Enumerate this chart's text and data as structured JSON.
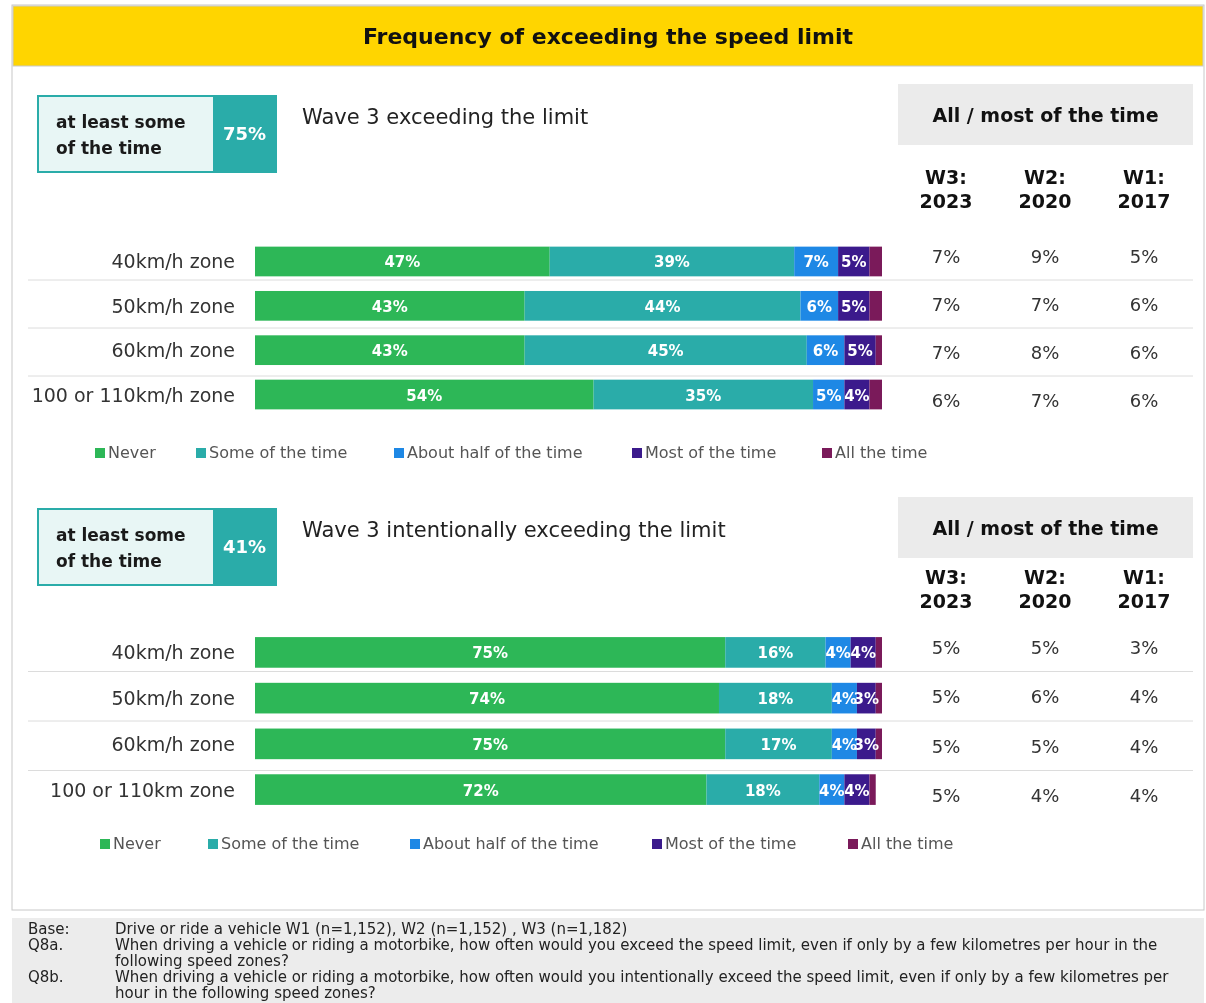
{
  "chart_data": [
    {
      "type": "other",
      "title": "Frequency of exceeding the speed limit"
    },
    {
      "type": "other",
      "title": "at least some of the time",
      "annotations": [
        "75%"
      ]
    },
    {
      "type": "bar",
      "orientation": "horizontal",
      "stacked": true,
      "title": "Wave 3 exceeding the limit",
      "categories": [
        "40km/h zone",
        "50km/h zone",
        "60km/h zone",
        "100 or 110km/h zone"
      ],
      "xlim": [
        0,
        100
      ],
      "tick_labels": false,
      "legend": "bottom",
      "series": [
        {
          "name": "Never",
          "color": "#2db757",
          "values": [
            47,
            43,
            43,
            54
          ],
          "value_labels": [
            "47%",
            "43%",
            "43%",
            "54%"
          ]
        },
        {
          "name": "Some of the time",
          "color": "#2aaca9",
          "values": [
            39,
            44,
            45,
            35
          ],
          "value_labels": [
            "39%",
            "44%",
            "45%",
            "35%"
          ]
        },
        {
          "name": "About half of the time",
          "color": "#1e88e5",
          "values": [
            7,
            6,
            6,
            5
          ],
          "value_labels": [
            "7%",
            "6%",
            "6%",
            "5%"
          ]
        },
        {
          "name": "Most of the time",
          "color": "#3b1a8c",
          "values": [
            5,
            5,
            5,
            4
          ],
          "value_labels": [
            "5%",
            "5%",
            "5%",
            "4%"
          ]
        },
        {
          "name": "All the time",
          "color": "#7a1a5a",
          "values": [
            2,
            2,
            1,
            2
          ],
          "value_labels": [
            null,
            null,
            null,
            null
          ]
        }
      ]
    },
    {
      "type": "other",
      "title": "All / most of the time",
      "categories": [
        "W3: 2023",
        "W2: 2020",
        "W1: 2017"
      ],
      "cell_labels": [
        [
          "7%",
          "9%",
          "5%"
        ],
        [
          "7%",
          "7%",
          "6%"
        ],
        [
          "7%",
          "8%",
          "6%"
        ],
        [
          "6%",
          "7%",
          "6%"
        ]
      ]
    },
    {
      "type": "other",
      "title": "at least some of the time",
      "annotations": [
        "41%"
      ]
    },
    {
      "type": "bar",
      "orientation": "horizontal",
      "stacked": true,
      "title": "Wave 3 intentionally exceeding the limit",
      "categories": [
        "40km/h zone",
        "50km/h zone",
        "60km/h zone",
        "100 or 110km zone"
      ],
      "xlim": [
        0,
        100
      ],
      "tick_labels": false,
      "legend": "bottom",
      "series": [
        {
          "name": "Never",
          "color": "#2db757",
          "values": [
            75,
            74,
            75,
            72
          ],
          "value_labels": [
            "75%",
            "74%",
            "75%",
            "72%"
          ]
        },
        {
          "name": "Some of the time",
          "color": "#2aaca9",
          "values": [
            16,
            18,
            17,
            18
          ],
          "value_labels": [
            "16%",
            "18%",
            "17%",
            "18%"
          ]
        },
        {
          "name": "About half of the time",
          "color": "#1e88e5",
          "values": [
            4,
            4,
            4,
            4
          ],
          "value_labels": [
            "4%",
            "4%",
            "4%",
            "4%"
          ]
        },
        {
          "name": "Most of the time",
          "color": "#3b1a8c",
          "values": [
            4,
            3,
            3,
            4
          ],
          "value_labels": [
            "4%",
            "3%",
            "3%",
            "4%"
          ]
        },
        {
          "name": "All the time",
          "color": "#7a1a5a",
          "values": [
            1,
            1,
            1,
            1
          ],
          "value_labels": [
            null,
            null,
            null,
            null
          ]
        }
      ]
    },
    {
      "type": "other",
      "title": "All / most of the time",
      "categories": [
        "W3: 2023",
        "W2: 2020",
        "W1: 2017"
      ],
      "cell_labels": [
        [
          "5%",
          "5%",
          "3%"
        ],
        [
          "5%",
          "6%",
          "4%"
        ],
        [
          "5%",
          "5%",
          "4%"
        ],
        [
          "5%",
          "4%",
          "4%"
        ]
      ]
    },
    {
      "type": "other",
      "annotations": [
        "Base: Drive or ride a vehicle W1 (n=1,152), W2 (n=1,152) , W3 (n=1,182)",
        "Q8a. When driving a vehicle or riding a motorbike, how often would you exceed the speed limit, even if only by a few kilometres per hour in the following speed zones?",
        "Q8b. When driving a vehicle or riding a motorbike, how often would you intentionally exceed the speed limit, even if only by a few kilometres per hour in the following speed zones?"
      ]
    }
  ]
}
